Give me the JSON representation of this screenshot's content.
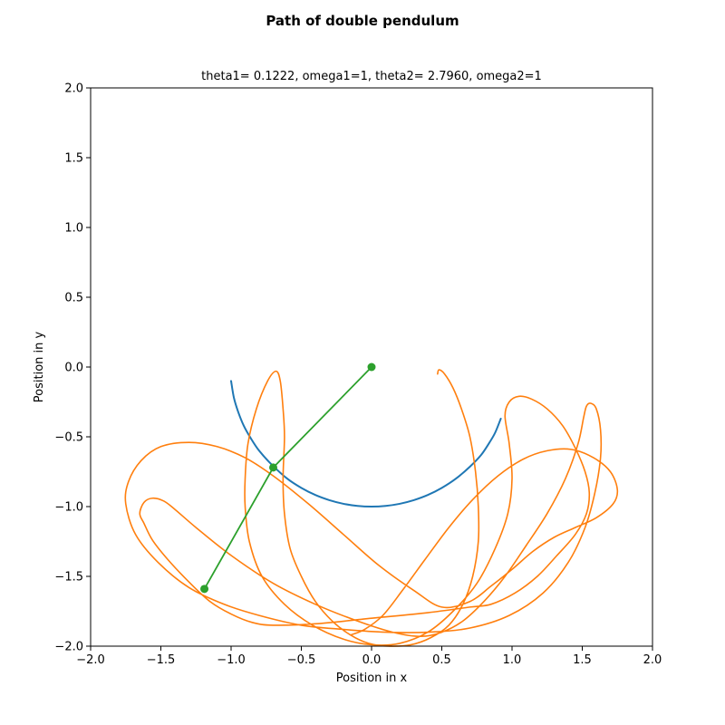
{
  "chart_data": {
    "type": "line",
    "title": "Path of double pendulum",
    "subtitle": "theta1= 0.1222, omega1=1, theta2= 2.7960, omega2=1",
    "xlabel": "Position in x",
    "ylabel": "Position in y",
    "xlim": [
      -2.0,
      2.0
    ],
    "ylim": [
      -2.0,
      2.0
    ],
    "xticks": [
      -2.0,
      -1.5,
      -1.0,
      -0.5,
      0.0,
      0.5,
      1.0,
      1.5,
      2.0
    ],
    "yticks": [
      -2.0,
      -1.5,
      -1.0,
      -0.5,
      0.0,
      0.5,
      1.0,
      1.5,
      2.0
    ],
    "xtick_labels": [
      "−2.0",
      "−1.5",
      "−1.0",
      "−0.5",
      "0.0",
      "0.5",
      "1.0",
      "1.5",
      "2.0"
    ],
    "ytick_labels": [
      "−2.0",
      "−1.5",
      "−1.0",
      "−0.5",
      "0.0",
      "0.5",
      "1.0",
      "1.5",
      "2.0"
    ],
    "grid": false,
    "legend": "none",
    "series": [
      {
        "color": "#1f77b4",
        "points": [
          [
            -1.0,
            -0.1
          ],
          [
            -0.98,
            -0.22
          ],
          [
            -0.95,
            -0.32
          ],
          [
            -0.91,
            -0.42
          ],
          [
            -0.86,
            -0.51
          ],
          [
            -0.8,
            -0.6
          ],
          [
            -0.71,
            -0.7
          ],
          [
            -0.6,
            -0.8
          ],
          [
            -0.5,
            -0.866
          ],
          [
            -0.4,
            -0.917
          ],
          [
            -0.3,
            -0.954
          ],
          [
            -0.2,
            -0.98
          ],
          [
            -0.1,
            -0.995
          ],
          [
            0.0,
            -1.0
          ],
          [
            0.1,
            -0.995
          ],
          [
            0.2,
            -0.98
          ],
          [
            0.3,
            -0.954
          ],
          [
            0.4,
            -0.917
          ],
          [
            0.5,
            -0.866
          ],
          [
            0.6,
            -0.8
          ],
          [
            0.7,
            -0.714
          ],
          [
            0.78,
            -0.63
          ],
          [
            0.84,
            -0.54
          ],
          [
            0.88,
            -0.47
          ],
          [
            0.92,
            -0.37
          ]
        ]
      },
      {
        "color": "#ff7f0e",
        "points": [
          [
            0.47,
            -0.05
          ],
          [
            0.48,
            -0.02
          ],
          [
            0.52,
            -0.05
          ],
          [
            0.58,
            -0.15
          ],
          [
            0.64,
            -0.3
          ],
          [
            0.7,
            -0.5
          ],
          [
            0.74,
            -0.75
          ],
          [
            0.76,
            -1.0
          ],
          [
            0.76,
            -1.25
          ],
          [
            0.72,
            -1.5
          ],
          [
            0.65,
            -1.7
          ],
          [
            0.55,
            -1.85
          ],
          [
            0.42,
            -1.94
          ],
          [
            0.28,
            -1.99
          ],
          [
            0.12,
            -2.0
          ],
          [
            -0.02,
            -1.98
          ],
          [
            -0.15,
            -1.92
          ],
          [
            -0.28,
            -1.82
          ],
          [
            -0.4,
            -1.68
          ],
          [
            -0.5,
            -1.5
          ],
          [
            -0.58,
            -1.3
          ],
          [
            -0.62,
            -1.05
          ],
          [
            -0.63,
            -0.8
          ],
          [
            -0.62,
            -0.5
          ],
          [
            -0.63,
            -0.3
          ],
          [
            -0.65,
            -0.1
          ],
          [
            -0.68,
            -0.03
          ],
          [
            -0.74,
            -0.1
          ],
          [
            -0.82,
            -0.3
          ],
          [
            -0.88,
            -0.55
          ],
          [
            -0.9,
            -0.8
          ],
          [
            -0.9,
            -1.0
          ],
          [
            -0.87,
            -1.25
          ],
          [
            -0.78,
            -1.5
          ],
          [
            -0.62,
            -1.7
          ],
          [
            -0.42,
            -1.85
          ],
          [
            -0.2,
            -1.95
          ],
          [
            0.0,
            -1.99
          ],
          [
            0.2,
            -1.98
          ],
          [
            0.4,
            -1.9
          ],
          [
            0.58,
            -1.75
          ],
          [
            0.75,
            -1.55
          ],
          [
            0.88,
            -1.3
          ],
          [
            0.97,
            -1.05
          ],
          [
            1.0,
            -0.8
          ],
          [
            0.98,
            -0.55
          ],
          [
            0.95,
            -0.35
          ],
          [
            0.98,
            -0.25
          ],
          [
            1.05,
            -0.21
          ],
          [
            1.14,
            -0.23
          ],
          [
            1.25,
            -0.3
          ],
          [
            1.36,
            -0.42
          ],
          [
            1.45,
            -0.58
          ],
          [
            1.52,
            -0.75
          ],
          [
            1.55,
            -0.9
          ],
          [
            1.53,
            -1.05
          ],
          [
            1.45,
            -1.2
          ],
          [
            1.32,
            -1.35
          ],
          [
            1.18,
            -1.5
          ],
          [
            1.02,
            -1.62
          ],
          [
            0.85,
            -1.7
          ],
          [
            0.7,
            -1.72
          ],
          [
            0.4,
            -1.76
          ],
          [
            0.0,
            -1.8
          ],
          [
            -0.4,
            -1.84
          ],
          [
            -0.7,
            -1.85
          ],
          [
            -0.85,
            -1.83
          ],
          [
            -1.0,
            -1.77
          ],
          [
            -1.15,
            -1.68
          ],
          [
            -1.3,
            -1.54
          ],
          [
            -1.45,
            -1.38
          ],
          [
            -1.56,
            -1.24
          ],
          [
            -1.62,
            -1.12
          ],
          [
            -1.65,
            -1.05
          ],
          [
            -1.62,
            -0.97
          ],
          [
            -1.56,
            -0.94
          ],
          [
            -1.48,
            -0.96
          ],
          [
            -1.4,
            -1.02
          ],
          [
            -1.25,
            -1.15
          ],
          [
            -1.0,
            -1.35
          ],
          [
            -0.7,
            -1.55
          ],
          [
            -0.4,
            -1.7
          ],
          [
            -0.1,
            -1.82
          ],
          [
            0.15,
            -1.9
          ],
          [
            0.35,
            -1.93
          ],
          [
            0.5,
            -1.9
          ],
          [
            0.65,
            -1.82
          ],
          [
            0.8,
            -1.68
          ],
          [
            0.95,
            -1.5
          ],
          [
            1.1,
            -1.28
          ],
          [
            1.25,
            -1.05
          ],
          [
            1.38,
            -0.8
          ],
          [
            1.47,
            -0.55
          ],
          [
            1.51,
            -0.36
          ],
          [
            1.53,
            -0.28
          ],
          [
            1.56,
            -0.26
          ],
          [
            1.6,
            -0.3
          ],
          [
            1.63,
            -0.45
          ],
          [
            1.63,
            -0.65
          ],
          [
            1.59,
            -0.9
          ],
          [
            1.52,
            -1.15
          ],
          [
            1.4,
            -1.4
          ],
          [
            1.22,
            -1.62
          ],
          [
            0.98,
            -1.78
          ],
          [
            0.7,
            -1.87
          ],
          [
            0.4,
            -1.9
          ],
          [
            0.1,
            -1.9
          ],
          [
            -0.2,
            -1.88
          ],
          [
            -0.5,
            -1.85
          ],
          [
            -0.8,
            -1.78
          ],
          [
            -1.05,
            -1.7
          ],
          [
            -1.3,
            -1.58
          ],
          [
            -1.52,
            -1.4
          ],
          [
            -1.68,
            -1.2
          ],
          [
            -1.75,
            -0.98
          ],
          [
            -1.73,
            -0.82
          ],
          [
            -1.64,
            -0.67
          ],
          [
            -1.5,
            -0.57
          ],
          [
            -1.3,
            -0.54
          ],
          [
            -1.1,
            -0.57
          ],
          [
            -0.9,
            -0.65
          ],
          [
            -0.7,
            -0.78
          ],
          [
            -0.45,
            -0.98
          ],
          [
            -0.2,
            -1.2
          ],
          [
            0.05,
            -1.42
          ],
          [
            0.3,
            -1.6
          ],
          [
            0.5,
            -1.72
          ],
          [
            0.7,
            -1.68
          ],
          [
            0.85,
            -1.57
          ],
          [
            1.0,
            -1.45
          ],
          [
            1.15,
            -1.32
          ],
          [
            1.3,
            -1.22
          ],
          [
            1.45,
            -1.15
          ],
          [
            1.6,
            -1.08
          ],
          [
            1.72,
            -0.98
          ],
          [
            1.75,
            -0.88
          ],
          [
            1.7,
            -0.75
          ],
          [
            1.58,
            -0.65
          ],
          [
            1.42,
            -0.59
          ],
          [
            1.25,
            -0.6
          ],
          [
            1.08,
            -0.66
          ],
          [
            0.9,
            -0.78
          ],
          [
            0.72,
            -0.95
          ],
          [
            0.55,
            -1.15
          ],
          [
            0.38,
            -1.38
          ],
          [
            0.22,
            -1.6
          ],
          [
            0.08,
            -1.78
          ],
          [
            -0.05,
            -1.88
          ],
          [
            -0.15,
            -1.92
          ]
        ]
      }
    ],
    "pendulum": {
      "color": "#2ca02c",
      "points": [
        [
          0.0,
          0.0
        ],
        [
          -0.7,
          -0.72
        ],
        [
          -1.19,
          -1.59
        ]
      ]
    }
  }
}
